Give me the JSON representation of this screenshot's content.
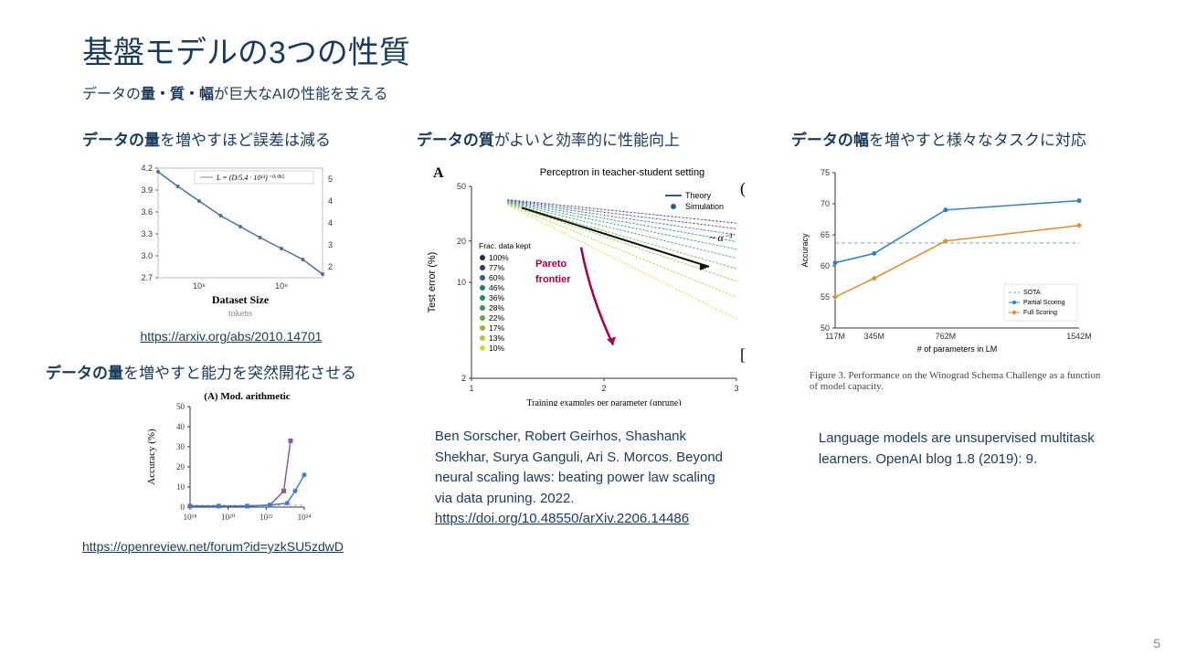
{
  "title": "基盤モデルの3つの性質",
  "subtitle_pre": "データの",
  "subtitle_bold": "量・質・幅",
  "subtitle_post": "が巨大なAIの性能を支える",
  "page_num": "5",
  "col1": {
    "head_bold": "データの量",
    "head_rest": "を増やすほど誤差は減る",
    "chart1": {
      "legend": "L = (D/5.4 · 10¹³)⁻⁰·⁰⁹⁵",
      "y_ticks_left": [
        "4.2",
        "3.9",
        "3.6",
        "3.3",
        "3.0",
        "2.7"
      ],
      "y_ticks_right": [
        "5",
        "4",
        "4",
        "3",
        "2"
      ],
      "x_ticks": [
        "10⁸",
        "10⁹"
      ],
      "x_label": "Dataset Size",
      "x_sublabel": "tokens",
      "line_color": "#4a6fa5",
      "points": [
        [
          0,
          4.15
        ],
        [
          0.12,
          3.95
        ],
        [
          0.25,
          3.75
        ],
        [
          0.38,
          3.55
        ],
        [
          0.5,
          3.4
        ],
        [
          0.62,
          3.25
        ],
        [
          0.75,
          3.1
        ],
        [
          0.88,
          2.95
        ],
        [
          1.0,
          2.75
        ]
      ],
      "ylim": [
        2.7,
        4.2
      ]
    },
    "link1": "https://arxiv.org/abs/2010.14701",
    "sub_head_bold": "データの量",
    "sub_head_rest": "を増やすと能力を突然開花させる",
    "chart2": {
      "title": "(A) Mod. arithmetic",
      "y_label": "Accuracy (%)",
      "y_ticks": [
        "0",
        "10",
        "20",
        "30",
        "40",
        "50"
      ],
      "x_ticks": [
        "10¹⁸",
        "10²⁰",
        "10²²",
        "10²⁴"
      ],
      "ylim": [
        0,
        50
      ],
      "series_blue": {
        "color": "#3b7dd8",
        "points": [
          [
            0,
            0.5
          ],
          [
            0.25,
            0.5
          ],
          [
            0.5,
            0.5
          ],
          [
            0.7,
            1
          ],
          [
            0.85,
            2
          ],
          [
            0.92,
            8
          ],
          [
            1.0,
            16
          ]
        ]
      },
      "series_purple": {
        "color": "#8b5a9e",
        "points": [
          [
            0,
            0.5
          ],
          [
            0.25,
            0.5
          ],
          [
            0.5,
            0.5
          ],
          [
            0.7,
            1
          ],
          [
            0.82,
            8
          ],
          [
            0.88,
            33
          ]
        ]
      },
      "dash_color": "#d88"
    },
    "link2": "https://openreview.net/forum?id=yzkSU5zdwD"
  },
  "col2": {
    "head_bold": "データの質",
    "head_rest": "がよいと効率的に性能向上",
    "chart": {
      "panel": "A",
      "title": "Perceptron in teacher-student setting",
      "y_label": "Test error (%)",
      "x_label": "Training examples per parameter (αprune)",
      "y_ticks": [
        "2",
        "10",
        "20",
        "50"
      ],
      "x_ticks": [
        "1",
        "2",
        "3"
      ],
      "legend_theory": "Theory",
      "legend_sim": "Simulation",
      "pareto_label": "Pareto\nfrontier",
      "alpha_label": "~ α⁻¹",
      "frac_title": "Frac. data kept",
      "frac_items": [
        {
          "pct": "100%",
          "color": "#2d1e5f"
        },
        {
          "pct": "77%",
          "color": "#3b2f7a"
        },
        {
          "pct": "60%",
          "color": "#2b5d8a"
        },
        {
          "pct": "46%",
          "color": "#1f7a7a"
        },
        {
          "pct": "36%",
          "color": "#1f8a6a"
        },
        {
          "pct": "28%",
          "color": "#2f9a4f"
        },
        {
          "pct": "22%",
          "color": "#5fa83f"
        },
        {
          "pct": "17%",
          "color": "#8fb82f"
        },
        {
          "pct": "13%",
          "color": "#b8c82f"
        },
        {
          "pct": "10%",
          "color": "#d8d82f"
        }
      ]
    },
    "cite": "Ben Sorscher, Robert Geirhos, Shashank Shekhar, Surya Ganguli, Ari S. Morcos. Beyond neural scaling laws: beating power law scaling via data pruning. 2022. ",
    "cite_link_text": "https://doi.org/10.48550/arXiv.2206.14486"
  },
  "col3": {
    "head_bold": "データの幅",
    "head_rest": "を増やすと様々なタスクに対応",
    "chart": {
      "y_label": "Accuracy",
      "x_label": "# of parameters in LM",
      "y_ticks": [
        "50",
        "55",
        "60",
        "65",
        "70",
        "75"
      ],
      "x_ticks": [
        "117M",
        "345M",
        "762M",
        "1542M"
      ],
      "ylim": [
        50,
        75
      ],
      "sota_y": 63.7,
      "legend_sota": "SOTA",
      "legend_partial": "Partial Scoring",
      "legend_full": "Full Scoring",
      "series_partial": {
        "color": "#2f7fbf",
        "points": [
          [
            117,
            60.5
          ],
          [
            345,
            62
          ],
          [
            762,
            69
          ],
          [
            1542,
            70.5
          ]
        ]
      },
      "series_full": {
        "color": "#e08b2f",
        "points": [
          [
            117,
            55
          ],
          [
            345,
            58
          ],
          [
            762,
            64
          ],
          [
            1542,
            66.5
          ]
        ]
      }
    },
    "fig_cap": "Figure 3. Performance on the Winograd Schema Challenge as a function of model capacity.",
    "cite": "Language models are unsupervised multitask learners. OpenAI blog 1.8 (2019): 9."
  }
}
